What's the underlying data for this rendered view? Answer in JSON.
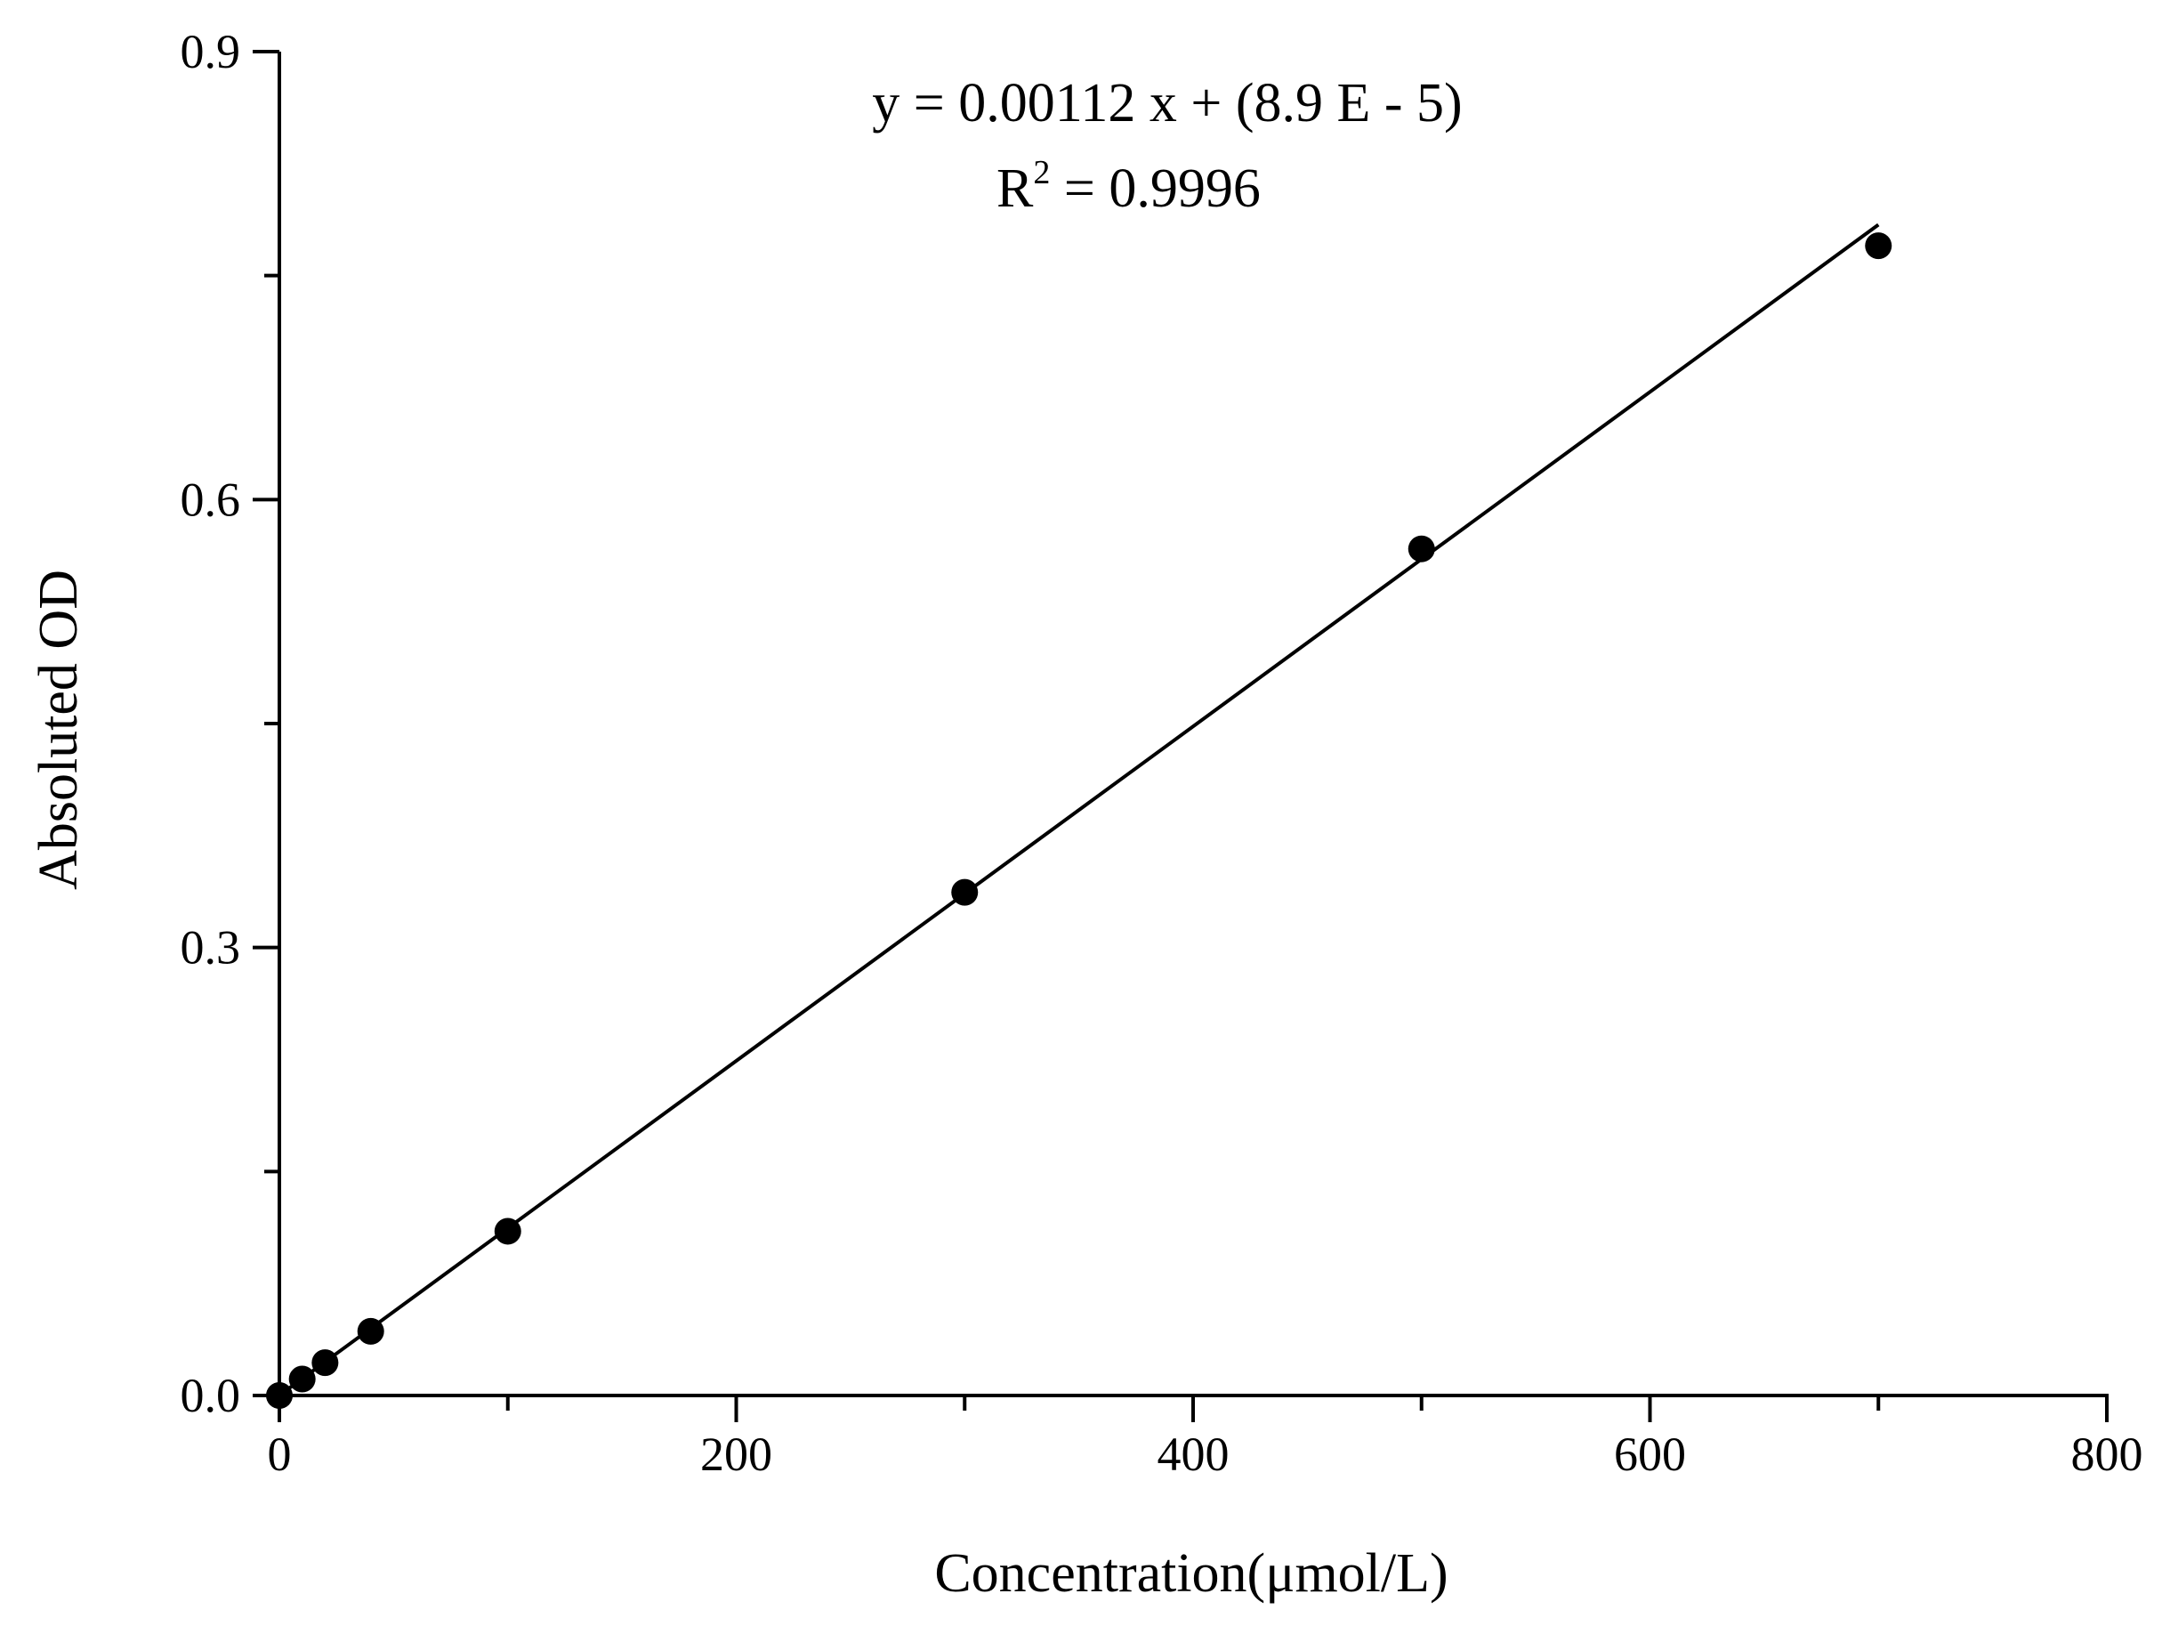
{
  "chart_data": {
    "type": "scatter",
    "xlabel": "Concentration(μmol/L)",
    "ylabel": "Absoluted OD",
    "xlim": [
      0,
      800
    ],
    "ylim": [
      0,
      0.9
    ],
    "x_ticks": [
      {
        "value": 0,
        "label": "0"
      },
      {
        "value": 200,
        "label": "200"
      },
      {
        "value": 400,
        "label": "400"
      },
      {
        "value": 600,
        "label": "600"
      },
      {
        "value": 800,
        "label": "800"
      }
    ],
    "x_minor_ticks": [
      100,
      300,
      500,
      700
    ],
    "y_ticks": [
      {
        "value": 0,
        "label": "0.0"
      },
      {
        "value": 0.3,
        "label": "0.3"
      },
      {
        "value": 0.6,
        "label": "0.6"
      },
      {
        "value": 0.9,
        "label": "0.9"
      }
    ],
    "y_minor_ticks": [
      0.15,
      0.45,
      0.75
    ],
    "grid": false,
    "series": [
      {
        "points": [
          {
            "x": 0,
            "y": 0.0
          },
          {
            "x": 10,
            "y": 0.011
          },
          {
            "x": 20,
            "y": 0.022
          },
          {
            "x": 40,
            "y": 0.043
          },
          {
            "x": 100,
            "y": 0.11
          },
          {
            "x": 300,
            "y": 0.337
          },
          {
            "x": 500,
            "y": 0.567
          },
          {
            "x": 700,
            "y": 0.77
          }
        ],
        "marker_color": "#000000"
      }
    ],
    "fit_line": {
      "slope": 0.00112,
      "intercept": 8.9e-05,
      "x_range": [
        0,
        700
      ],
      "color": "#000000"
    },
    "annotations": {
      "equation": "y = 0.00112 x + (8.9 E - 5)",
      "r2_prefix": "R",
      "r2_sup": "2",
      "r2_suffix": " = 0.9996"
    }
  }
}
